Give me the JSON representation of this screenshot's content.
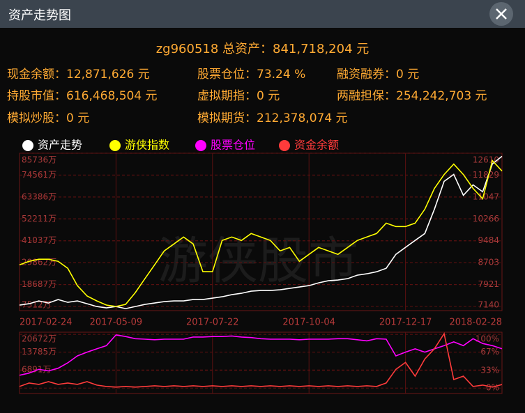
{
  "window": {
    "title": "资产走势图"
  },
  "summary": {
    "headline": "zg960518 总资产：841,718,204 元",
    "rows": [
      [
        "现金余额：12,871,626 元",
        "股票仓位：73.24 %",
        "融资融券：0 元"
      ],
      [
        "持股市值：616,468,504 元",
        "虚拟期指：0 元",
        "两融担保：254,242,703 元"
      ],
      [
        "模拟炒股：0 元",
        "模拟期货：212,378,074 元"
      ]
    ]
  },
  "watermark": "游侠股市",
  "chart_data": [
    {
      "type": "line",
      "categories": [
        "2017-02-24",
        null,
        null,
        null,
        null,
        null,
        null,
        null,
        null,
        null,
        "2017-05-09",
        null,
        null,
        null,
        null,
        null,
        null,
        null,
        null,
        null,
        "2017-07-22",
        null,
        null,
        null,
        null,
        null,
        null,
        null,
        null,
        null,
        "2017-10-04",
        null,
        null,
        null,
        null,
        null,
        null,
        null,
        null,
        null,
        "2017-12-17",
        null,
        null,
        null,
        null,
        null,
        null,
        null,
        null,
        null,
        "2018-02-28"
      ],
      "ylim": [
        5400,
        85736
      ],
      "yticks": [
        {
          "value": 7512,
          "label": "7512万"
        },
        {
          "value": 18687,
          "label": "18687万"
        },
        {
          "value": 29862,
          "label": "29862万"
        },
        {
          "value": 41037,
          "label": "41037万"
        },
        {
          "value": 52211,
          "label": "52211万"
        },
        {
          "value": 63386,
          "label": "63386万"
        },
        {
          "value": 74561,
          "label": "74561万"
        },
        {
          "value": 85736,
          "label": "85736万"
        }
      ],
      "y2lim": [
        6991,
        12610
      ],
      "y2ticks": [
        7140,
        7921,
        8703,
        9484,
        10266,
        11047,
        11829,
        12610
      ],
      "grid": true,
      "series": [
        {
          "name": "资产走势",
          "color": "#ffffff",
          "axis": "y",
          "values": [
            8222,
            8931,
            10350,
            9286,
            11060,
            9641,
            10350,
            8931,
            7512,
            6802,
            7512,
            6448,
            7512,
            8576,
            9286,
            9996,
            10350,
            10350,
            11060,
            11060,
            11770,
            12479,
            13544,
            14253,
            15318,
            15672,
            15672,
            16027,
            16737,
            17446,
            18156,
            19575,
            20640,
            20994,
            21704,
            23478,
            24188,
            25252,
            27026,
            34122,
            37670,
            41218,
            44766,
            57184,
            71376,
            74924,
            64280,
            69602,
            66054,
            80246,
            84172
          ]
        },
        {
          "name": "游侠指数",
          "color": "#ffff00",
          "axis": "y2",
          "values": [
            8627,
            8751,
            8826,
            8826,
            8751,
            8503,
            7884,
            7512,
            7338,
            7190,
            7140,
            7214,
            7636,
            8132,
            8627,
            9123,
            9371,
            9619,
            9371,
            8380,
            8380,
            9495,
            9619,
            9495,
            9743,
            9619,
            9495,
            9123,
            9247,
            8751,
            8999,
            9247,
            9123,
            8999,
            9247,
            9495,
            9619,
            9743,
            10115,
            9991,
            9991,
            10115,
            10611,
            11354,
            11850,
            12222,
            11850,
            11354,
            10983,
            12346,
            11974
          ]
        }
      ]
    },
    {
      "type": "line",
      "ylim": [
        -2200,
        21500
      ],
      "yticks": [
        {
          "value": 6891,
          "label": "6891万"
        },
        {
          "value": 13785,
          "label": "13785万"
        },
        {
          "value": 20672,
          "label": "20672万"
        }
      ],
      "y2lim": [
        -10,
        104
      ],
      "y2ticks": [
        {
          "value": 0,
          "label": "0%"
        },
        {
          "value": 33,
          "label": "33%"
        },
        {
          "value": 67,
          "label": "67%"
        },
        {
          "value": 100,
          "label": "100%"
        }
      ],
      "grid": true,
      "series": [
        {
          "name": "股票仓位",
          "color": "#ff00ff",
          "axis": "y2",
          "values": [
            24,
            28,
            35,
            32,
            37,
            47,
            60,
            67,
            73,
            79,
            99,
            96,
            92,
            91,
            90,
            91,
            91,
            91,
            95,
            95,
            96,
            96,
            97,
            95,
            94,
            92,
            91,
            91,
            91,
            90,
            91,
            91,
            91,
            92,
            92,
            90,
            88,
            92,
            91,
            60,
            67,
            73,
            67,
            73,
            79,
            86,
            79,
            92,
            83,
            79,
            73.24
          ]
        },
        {
          "name": "资金余额",
          "color": "#ff3b3b",
          "axis": "y",
          "values": [
            530,
            1855,
            1325,
            2385,
            1325,
            1855,
            1325,
            2385,
            1060,
            530,
            265,
            530,
            265,
            530,
            795,
            530,
            795,
            530,
            795,
            530,
            795,
            530,
            795,
            530,
            795,
            530,
            795,
            530,
            795,
            530,
            795,
            530,
            795,
            530,
            795,
            530,
            795,
            530,
            1855,
            7155,
            9805,
            4505,
            11130,
            15105,
            20936,
            3180,
            4505,
            530,
            1060,
            265,
            1287
          ]
        }
      ]
    }
  ]
}
